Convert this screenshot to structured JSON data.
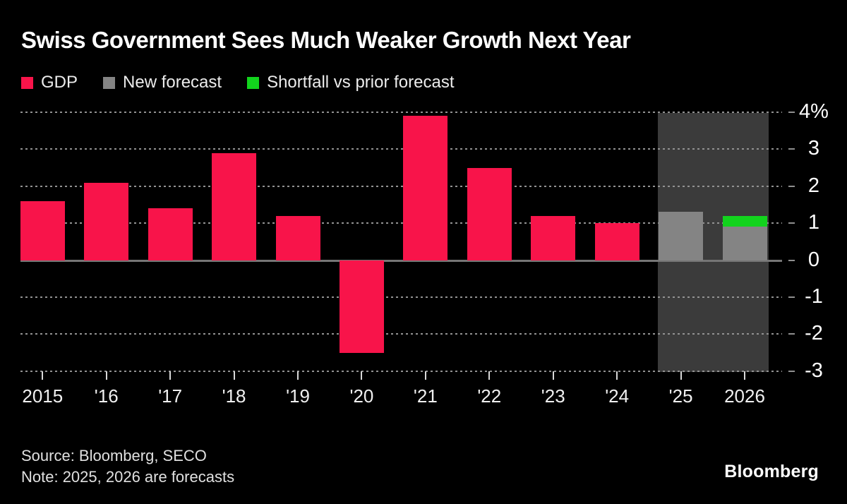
{
  "title": "Swiss Government Sees Much Weaker Growth Next Year",
  "legend": [
    {
      "label": "GDP",
      "color": "#f8144a"
    },
    {
      "label": "New forecast",
      "color": "#848484"
    },
    {
      "label": "Shortfall vs prior forecast",
      "color": "#12d31d"
    }
  ],
  "chart_data": {
    "type": "bar",
    "title": "Swiss Government Sees Much Weaker Growth Next Year",
    "categories": [
      "2015",
      "'16",
      "'17",
      "'18",
      "'19",
      "'20",
      "'21",
      "'22",
      "'23",
      "'24",
      "'25",
      "2026"
    ],
    "series": [
      {
        "name": "GDP",
        "color": "#f8144a",
        "values": [
          1.6,
          2.1,
          1.4,
          2.9,
          1.2,
          -2.5,
          3.9,
          2.5,
          1.2,
          1.0,
          null,
          null
        ]
      },
      {
        "name": "New forecast",
        "color": "#848484",
        "values": [
          null,
          null,
          null,
          null,
          null,
          null,
          null,
          null,
          null,
          null,
          1.3,
          0.9
        ]
      },
      {
        "name": "Shortfall vs prior forecast",
        "color": "#12d31d",
        "segments": [
          {
            "category": "2026",
            "from": 0.9,
            "to": 1.2
          }
        ]
      }
    ],
    "ylim": [
      -3,
      4
    ],
    "yticks": [
      4,
      3,
      2,
      1,
      0,
      -1,
      -2,
      -3
    ],
    "ytick_labels": [
      "4%",
      "3",
      "2",
      "1",
      "0",
      "-1",
      "-2",
      "-3"
    ],
    "unit": "%",
    "grid": "horizontal-dotted",
    "legend_position": "top-left",
    "forecast_band": {
      "categories": [
        "'25",
        "2026"
      ],
      "color": "#3b3b3b"
    }
  },
  "footer": {
    "source": "Source: Bloomberg, SECO",
    "note": "Note: 2025, 2026 are forecasts",
    "logo": "Bloomberg"
  },
  "colors": {
    "background": "#000000",
    "gdp_bar": "#f8144a",
    "forecast_bar": "#848484",
    "shortfall_segment": "#12d31d",
    "forecast_band": "#3b3b3b",
    "gridline": "#929292",
    "zero_line": "#757575",
    "text": "#ffffff"
  }
}
